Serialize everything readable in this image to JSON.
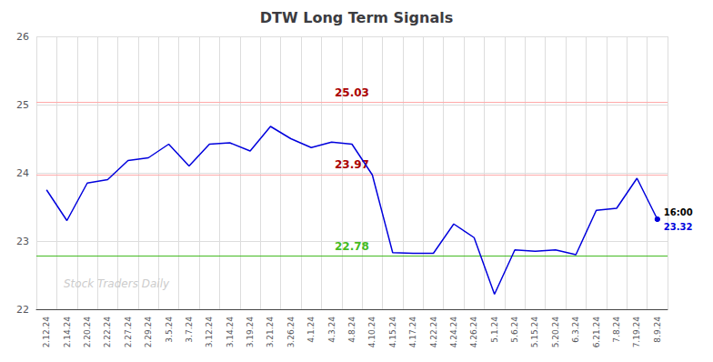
{
  "chart_data": {
    "type": "line",
    "title": "DTW Long Term Signals",
    "categories": [
      "2.12.24",
      "2.14.24",
      "2.20.24",
      "2.22.24",
      "2.27.24",
      "2.29.24",
      "3.5.24",
      "3.7.24",
      "3.12.24",
      "3.14.24",
      "3.19.24",
      "3.21.24",
      "3.26.24",
      "4.1.24",
      "4.3.24",
      "4.8.24",
      "4.10.24",
      "4.15.24",
      "4.17.24",
      "4.22.24",
      "4.24.24",
      "4.26.24",
      "5.1.24",
      "5.6.24",
      "5.15.24",
      "5.20.24",
      "6.3.24",
      "6.21.24",
      "7.8.24",
      "7.19.24",
      "8.9.24"
    ],
    "values": [
      23.75,
      23.3,
      23.85,
      23.9,
      24.18,
      24.22,
      24.42,
      24.1,
      24.42,
      24.44,
      24.32,
      24.68,
      24.5,
      24.37,
      24.45,
      24.42,
      23.97,
      22.83,
      22.82,
      22.82,
      23.25,
      23.05,
      22.22,
      22.87,
      22.85,
      22.87,
      22.8,
      23.45,
      23.48,
      23.92,
      23.32
    ],
    "color": "#0000dd",
    "ylim": [
      22,
      26
    ],
    "yticks": [
      22,
      23,
      24,
      25,
      26
    ],
    "grid": true,
    "reference_lines": [
      {
        "value": 25.03,
        "label": "25.03",
        "color": "#ffaaaa",
        "label_color": "#aa0000"
      },
      {
        "value": 23.97,
        "label": "23.97",
        "color": "#ffaaaa",
        "label_color": "#aa0000"
      },
      {
        "value": 22.78,
        "label": "22.78",
        "color": "#44bb22",
        "label_color": "#44bb22"
      }
    ],
    "annotations": [
      {
        "text": "16:00",
        "color": "#000000"
      },
      {
        "text": "23.32",
        "value": 23.32,
        "color": "#0000dd"
      }
    ],
    "watermark": "Stock Traders Daily",
    "watermark_color": "#cccccc"
  }
}
